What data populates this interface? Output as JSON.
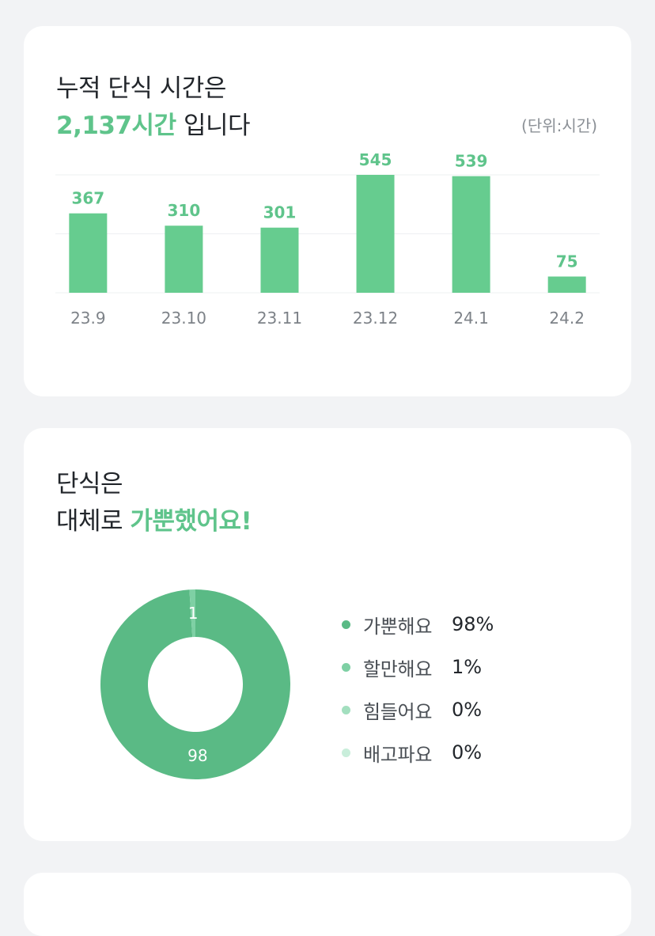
{
  "hours_card": {
    "line1": "누적 단식 시간은",
    "total_hours": "2,137시간",
    "line2_suffix": " 입니다",
    "unit_note": "(단위:시간)"
  },
  "chart_data": {
    "type": "bar",
    "categories": [
      "23.9",
      "23.10",
      "23.11",
      "23.12",
      "24.1",
      "24.2"
    ],
    "values": [
      367,
      310,
      301,
      545,
      539,
      75
    ],
    "title": "",
    "xlabel": "",
    "ylabel": "",
    "ylim": [
      0,
      545
    ],
    "grid": true,
    "color": "#66cc8f"
  },
  "feeling_card": {
    "line1": "단식은",
    "line2_prefix": "대체로 ",
    "line2_accent": "가뿐했어요!",
    "donut": {
      "slices": [
        {
          "name": "가뿐해요",
          "value": 98,
          "label": "98",
          "color": "#5aba85"
        },
        {
          "name": "할만해요",
          "value": 1,
          "label": "1",
          "color": "#7ed0a4"
        },
        {
          "name": "힘들어요",
          "value": 0,
          "label": "",
          "color": "#a3dfbf"
        },
        {
          "name": "배고파요",
          "value": 0,
          "label": "",
          "color": "#c9eedb"
        }
      ]
    },
    "legend": [
      {
        "label": "가뿐해요",
        "value": "98%",
        "color": "#5aba85"
      },
      {
        "label": "할만해요",
        "value": "1%",
        "color": "#7ed0a4"
      },
      {
        "label": "힘들어요",
        "value": "0%",
        "color": "#a3dfbf"
      },
      {
        "label": "배고파요",
        "value": "0%",
        "color": "#c9eedb"
      }
    ]
  }
}
